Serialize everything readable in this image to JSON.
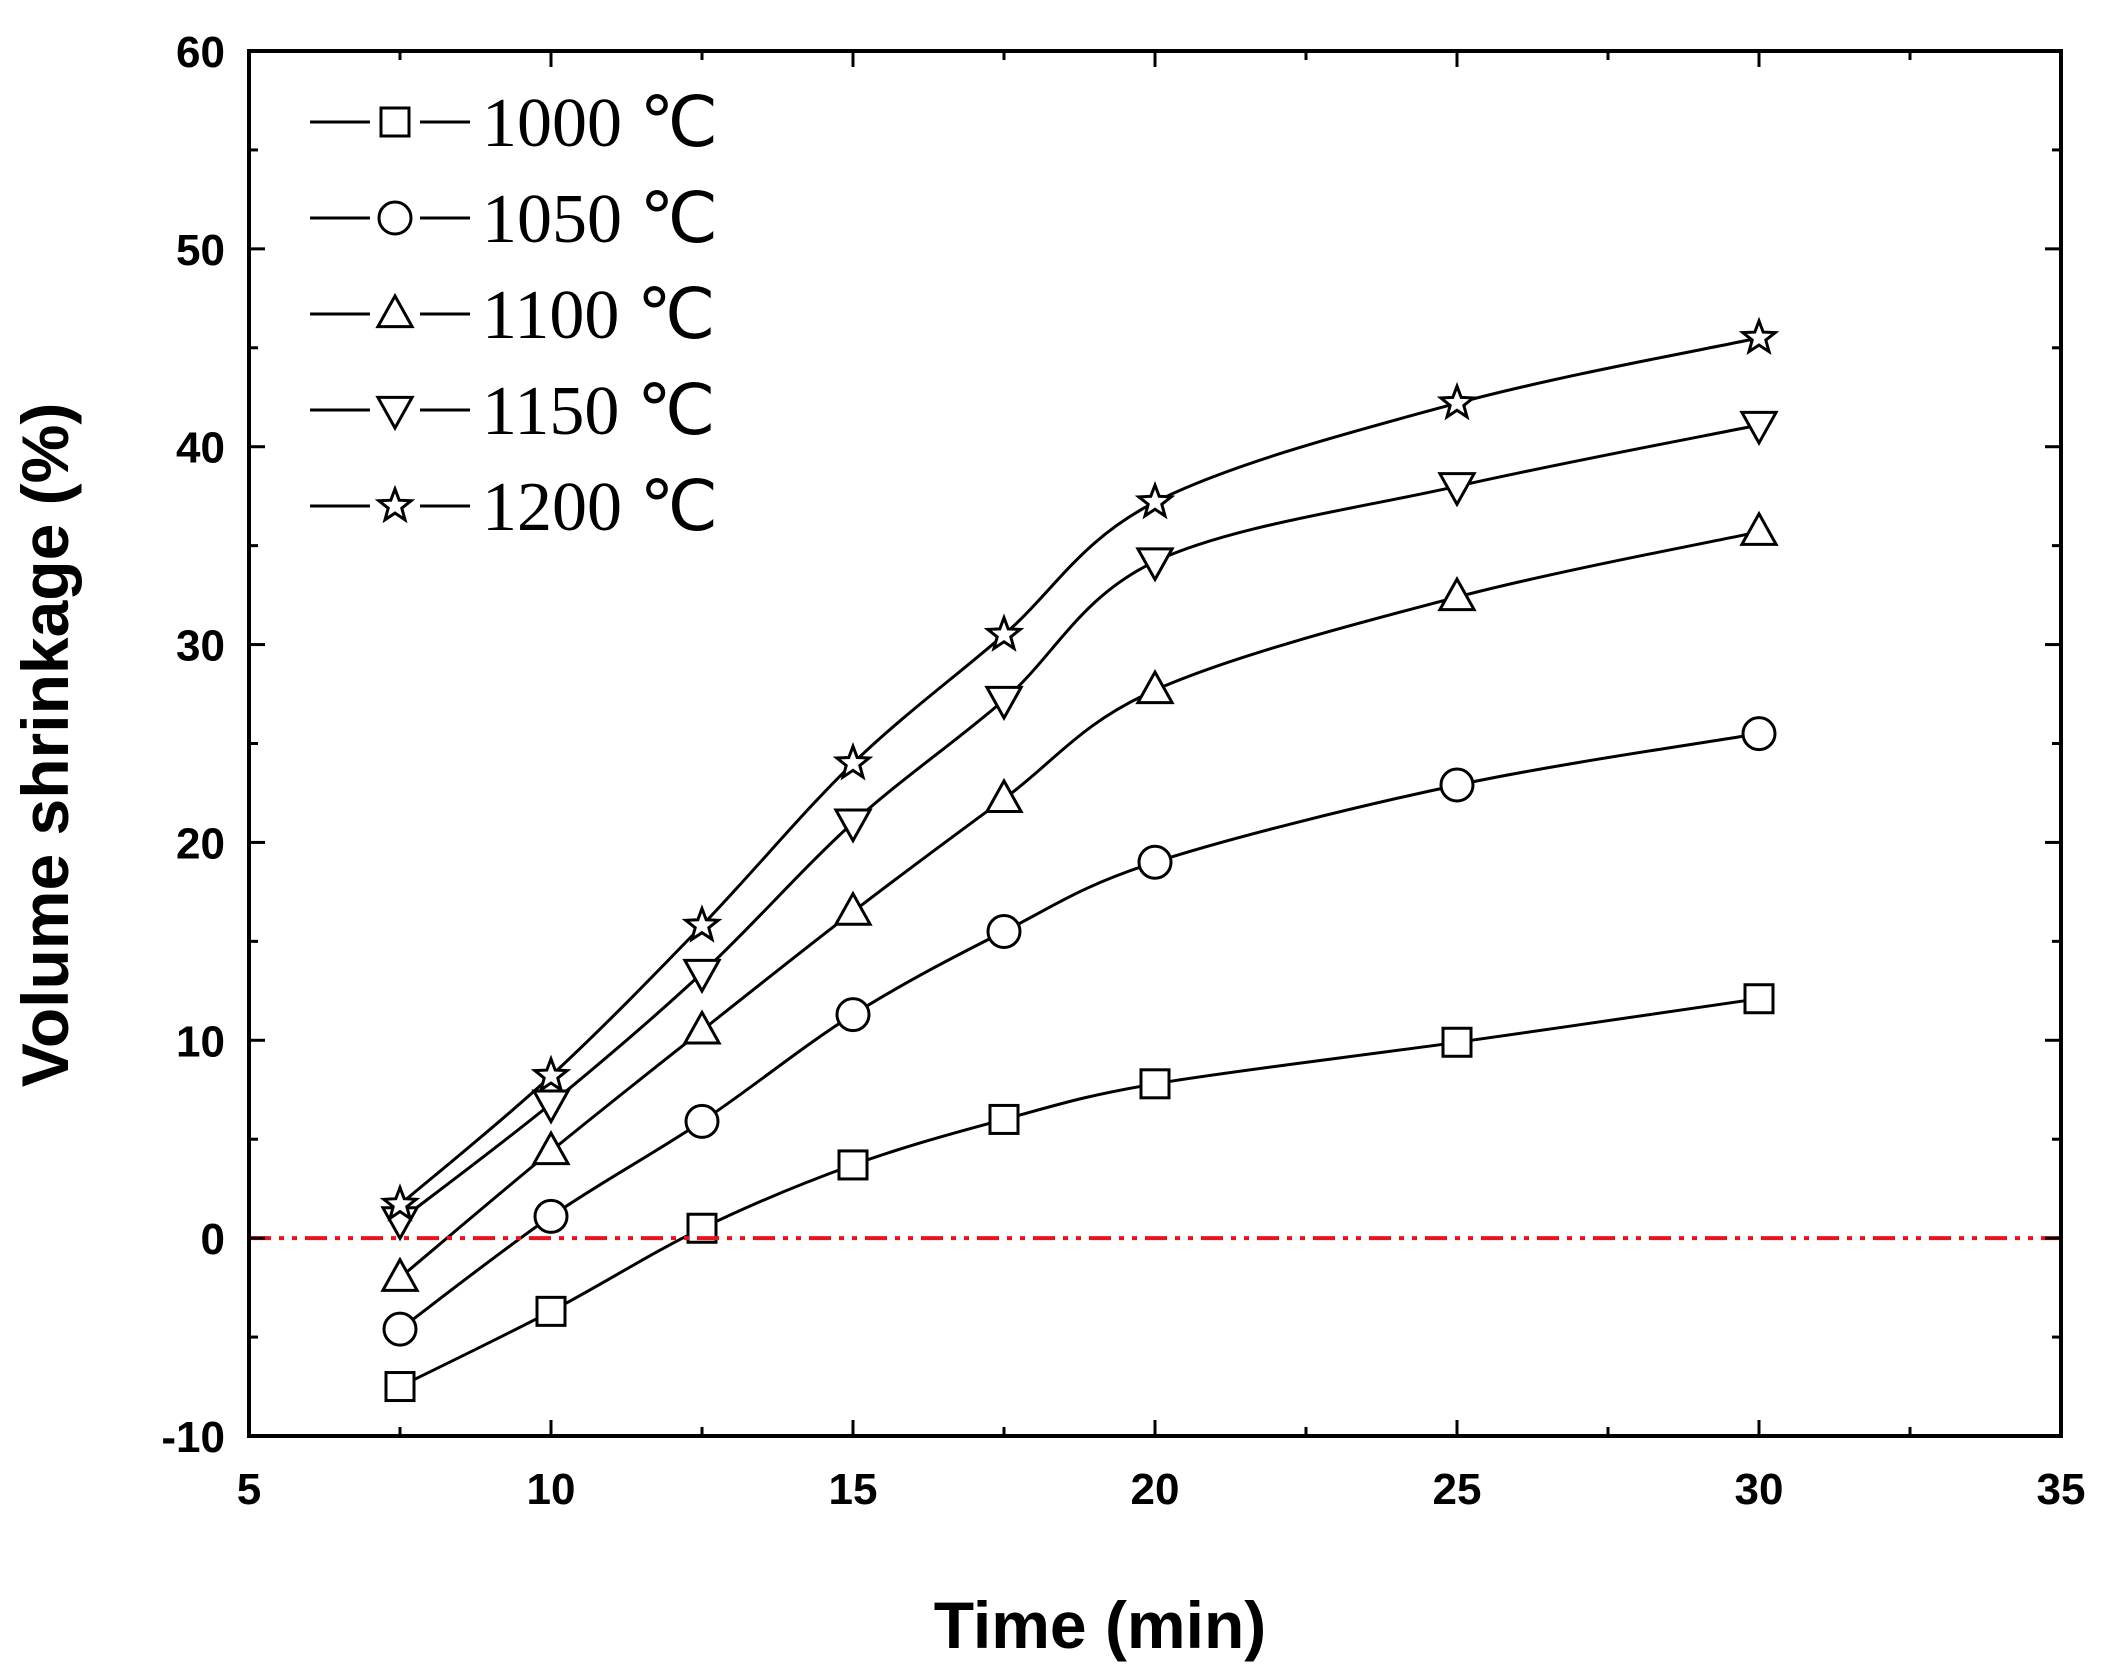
{
  "chart_data": {
    "type": "line",
    "title": "",
    "xlabel": "Time (min)",
    "ylabel": "Volume shrinkage (%)",
    "xlim": [
      5,
      35
    ],
    "ylim": [
      -10,
      60
    ],
    "xticks": [
      5,
      10,
      15,
      20,
      25,
      30,
      35
    ],
    "yticks": [
      -10,
      0,
      10,
      20,
      30,
      40,
      50,
      60
    ],
    "grid": false,
    "legend_position": "top-left",
    "reference_line": {
      "y": 0,
      "color": "#e8141c",
      "style": "dash-dot-dot"
    },
    "x": [
      7.5,
      10,
      12.5,
      15,
      17.5,
      20,
      25,
      30
    ],
    "series": [
      {
        "name": "1000 ℃",
        "marker": "square",
        "values": [
          -7.5,
          -3.7,
          0.5,
          3.7,
          6.0,
          7.8,
          9.9,
          12.1
        ]
      },
      {
        "name": "1050 ℃",
        "marker": "circle",
        "values": [
          -4.6,
          1.1,
          5.9,
          11.3,
          15.5,
          19.0,
          22.9,
          25.5
        ]
      },
      {
        "name": "1100 ℃",
        "marker": "triangle-up",
        "values": [
          -2.0,
          4.4,
          10.5,
          16.5,
          22.2,
          27.7,
          32.4,
          35.7
        ]
      },
      {
        "name": "1150 ℃",
        "marker": "triangle-down",
        "values": [
          0.9,
          6.8,
          13.4,
          21.0,
          27.2,
          34.2,
          38.0,
          41.1
        ]
      },
      {
        "name": "1200 ℃",
        "marker": "star",
        "values": [
          1.7,
          8.2,
          15.8,
          24.0,
          30.5,
          37.2,
          42.2,
          45.5
        ]
      }
    ]
  }
}
